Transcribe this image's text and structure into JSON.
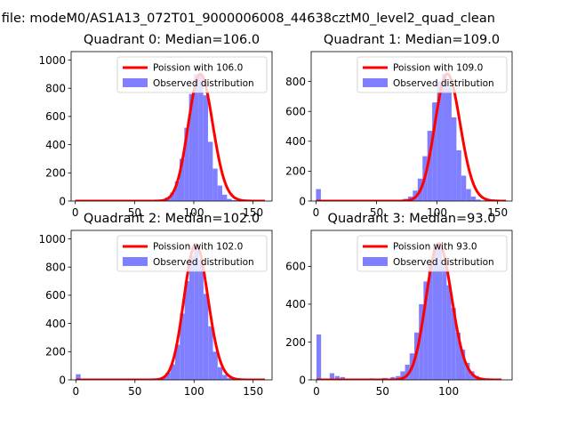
{
  "figure": {
    "suptitle": "n file: modeM0/AS1A13_072T01_9000006008_44638cztM0_level2_quad_clean"
  },
  "colors": {
    "hist_fill": "#7f7fff",
    "poisson_line": "#ff0000",
    "poisson_line_highlight": "#ff8080"
  },
  "chart_data": [
    {
      "type": "bar",
      "title": "Quadrant 0: Median=106.0",
      "legend": [
        "Poission with 106.0",
        "Observed distribution"
      ],
      "legend_loc": "upper right",
      "median": 106.0,
      "xlim": [
        -3.5,
        166
      ],
      "ylim": [
        0,
        1060
      ],
      "xticks": [
        0,
        50,
        100,
        150
      ],
      "yticks": [
        0,
        200,
        400,
        600,
        800,
        1000
      ],
      "bin_width": 4,
      "bins": {
        "x": [
          64,
          68,
          72,
          76,
          80,
          84,
          88,
          92,
          96,
          100,
          104,
          108,
          112,
          116,
          120,
          124,
          128,
          132,
          136
        ],
        "count": [
          3,
          6,
          12,
          25,
          60,
          140,
          300,
          520,
          760,
          900,
          900,
          750,
          420,
          230,
          110,
          45,
          15,
          6,
          2
        ]
      },
      "poisson_mean": 106.0,
      "poisson_x_range": [
        0,
        160
      ]
    },
    {
      "type": "bar",
      "title": "Quadrant 1: Median=109.0",
      "legend": [
        "Poission with 109.0",
        "Observed distribution"
      ],
      "legend_loc": "upper right",
      "median": 109.0,
      "xlim": [
        -4,
        162
      ],
      "ylim": [
        0,
        1000
      ],
      "xticks": [
        0,
        50,
        100,
        150
      ],
      "yticks": [
        0,
        200,
        400,
        600,
        800
      ],
      "bin_width": 4,
      "bins": {
        "x": [
          0,
          64,
          68,
          72,
          76,
          80,
          84,
          88,
          92,
          96,
          100,
          104,
          108,
          112,
          116,
          120,
          124,
          128,
          132,
          136,
          140
        ],
        "count": [
          80,
          3,
          6,
          15,
          30,
          70,
          150,
          300,
          470,
          660,
          800,
          850,
          760,
          560,
          340,
          170,
          80,
          30,
          10,
          4,
          2
        ]
      },
      "poisson_mean": 109.0,
      "poisson_x_range": [
        0,
        157
      ]
    },
    {
      "type": "bar",
      "title": "Quadrant 2: Median=102.0",
      "legend": [
        "Poission with 102.0",
        "Observed distribution"
      ],
      "legend_loc": "upper right",
      "median": 102.0,
      "xlim": [
        -4,
        166
      ],
      "ylim": [
        0,
        1060
      ],
      "xticks": [
        0,
        50,
        100,
        150
      ],
      "yticks": [
        0,
        200,
        400,
        600,
        800,
        1000
      ],
      "bin_width": 4,
      "bins": {
        "x": [
          0,
          64,
          68,
          72,
          76,
          80,
          84,
          88,
          92,
          96,
          100,
          104,
          108,
          112,
          116,
          120,
          124,
          128,
          132,
          136
        ],
        "count": [
          40,
          3,
          8,
          20,
          50,
          110,
          250,
          470,
          700,
          880,
          960,
          850,
          610,
          380,
          200,
          90,
          35,
          12,
          4,
          2
        ]
      },
      "poisson_mean": 102.0,
      "poisson_x_range": [
        0,
        160
      ]
    },
    {
      "type": "bar",
      "title": "Quadrant 3: Median=93.0",
      "legend": [
        "Poission with 93.0",
        "Observed distribution"
      ],
      "legend_loc": "upper right",
      "median": 93.0,
      "xlim": [
        -4,
        148
      ],
      "ylim": [
        0,
        790
      ],
      "xticks": [
        0,
        50,
        100
      ],
      "yticks": [
        0,
        200,
        400,
        600
      ],
      "bin_width": 3.5,
      "bins": {
        "x": [
          0,
          10,
          14,
          18,
          22,
          30,
          40,
          50,
          56,
          60,
          63.5,
          67,
          70.5,
          74,
          77.5,
          81,
          84.5,
          88,
          91.5,
          95,
          98.5,
          102,
          105.5,
          109,
          112.5,
          116,
          119.5,
          123,
          126.5
        ],
        "count": [
          240,
          35,
          20,
          15,
          5,
          5,
          8,
          10,
          15,
          20,
          45,
          80,
          140,
          250,
          400,
          520,
          620,
          720,
          720,
          600,
          500,
          380,
          250,
          160,
          90,
          45,
          20,
          10,
          5
        ]
      },
      "poisson_mean": 93.0,
      "poisson_x_range": [
        0,
        140
      ]
    }
  ]
}
